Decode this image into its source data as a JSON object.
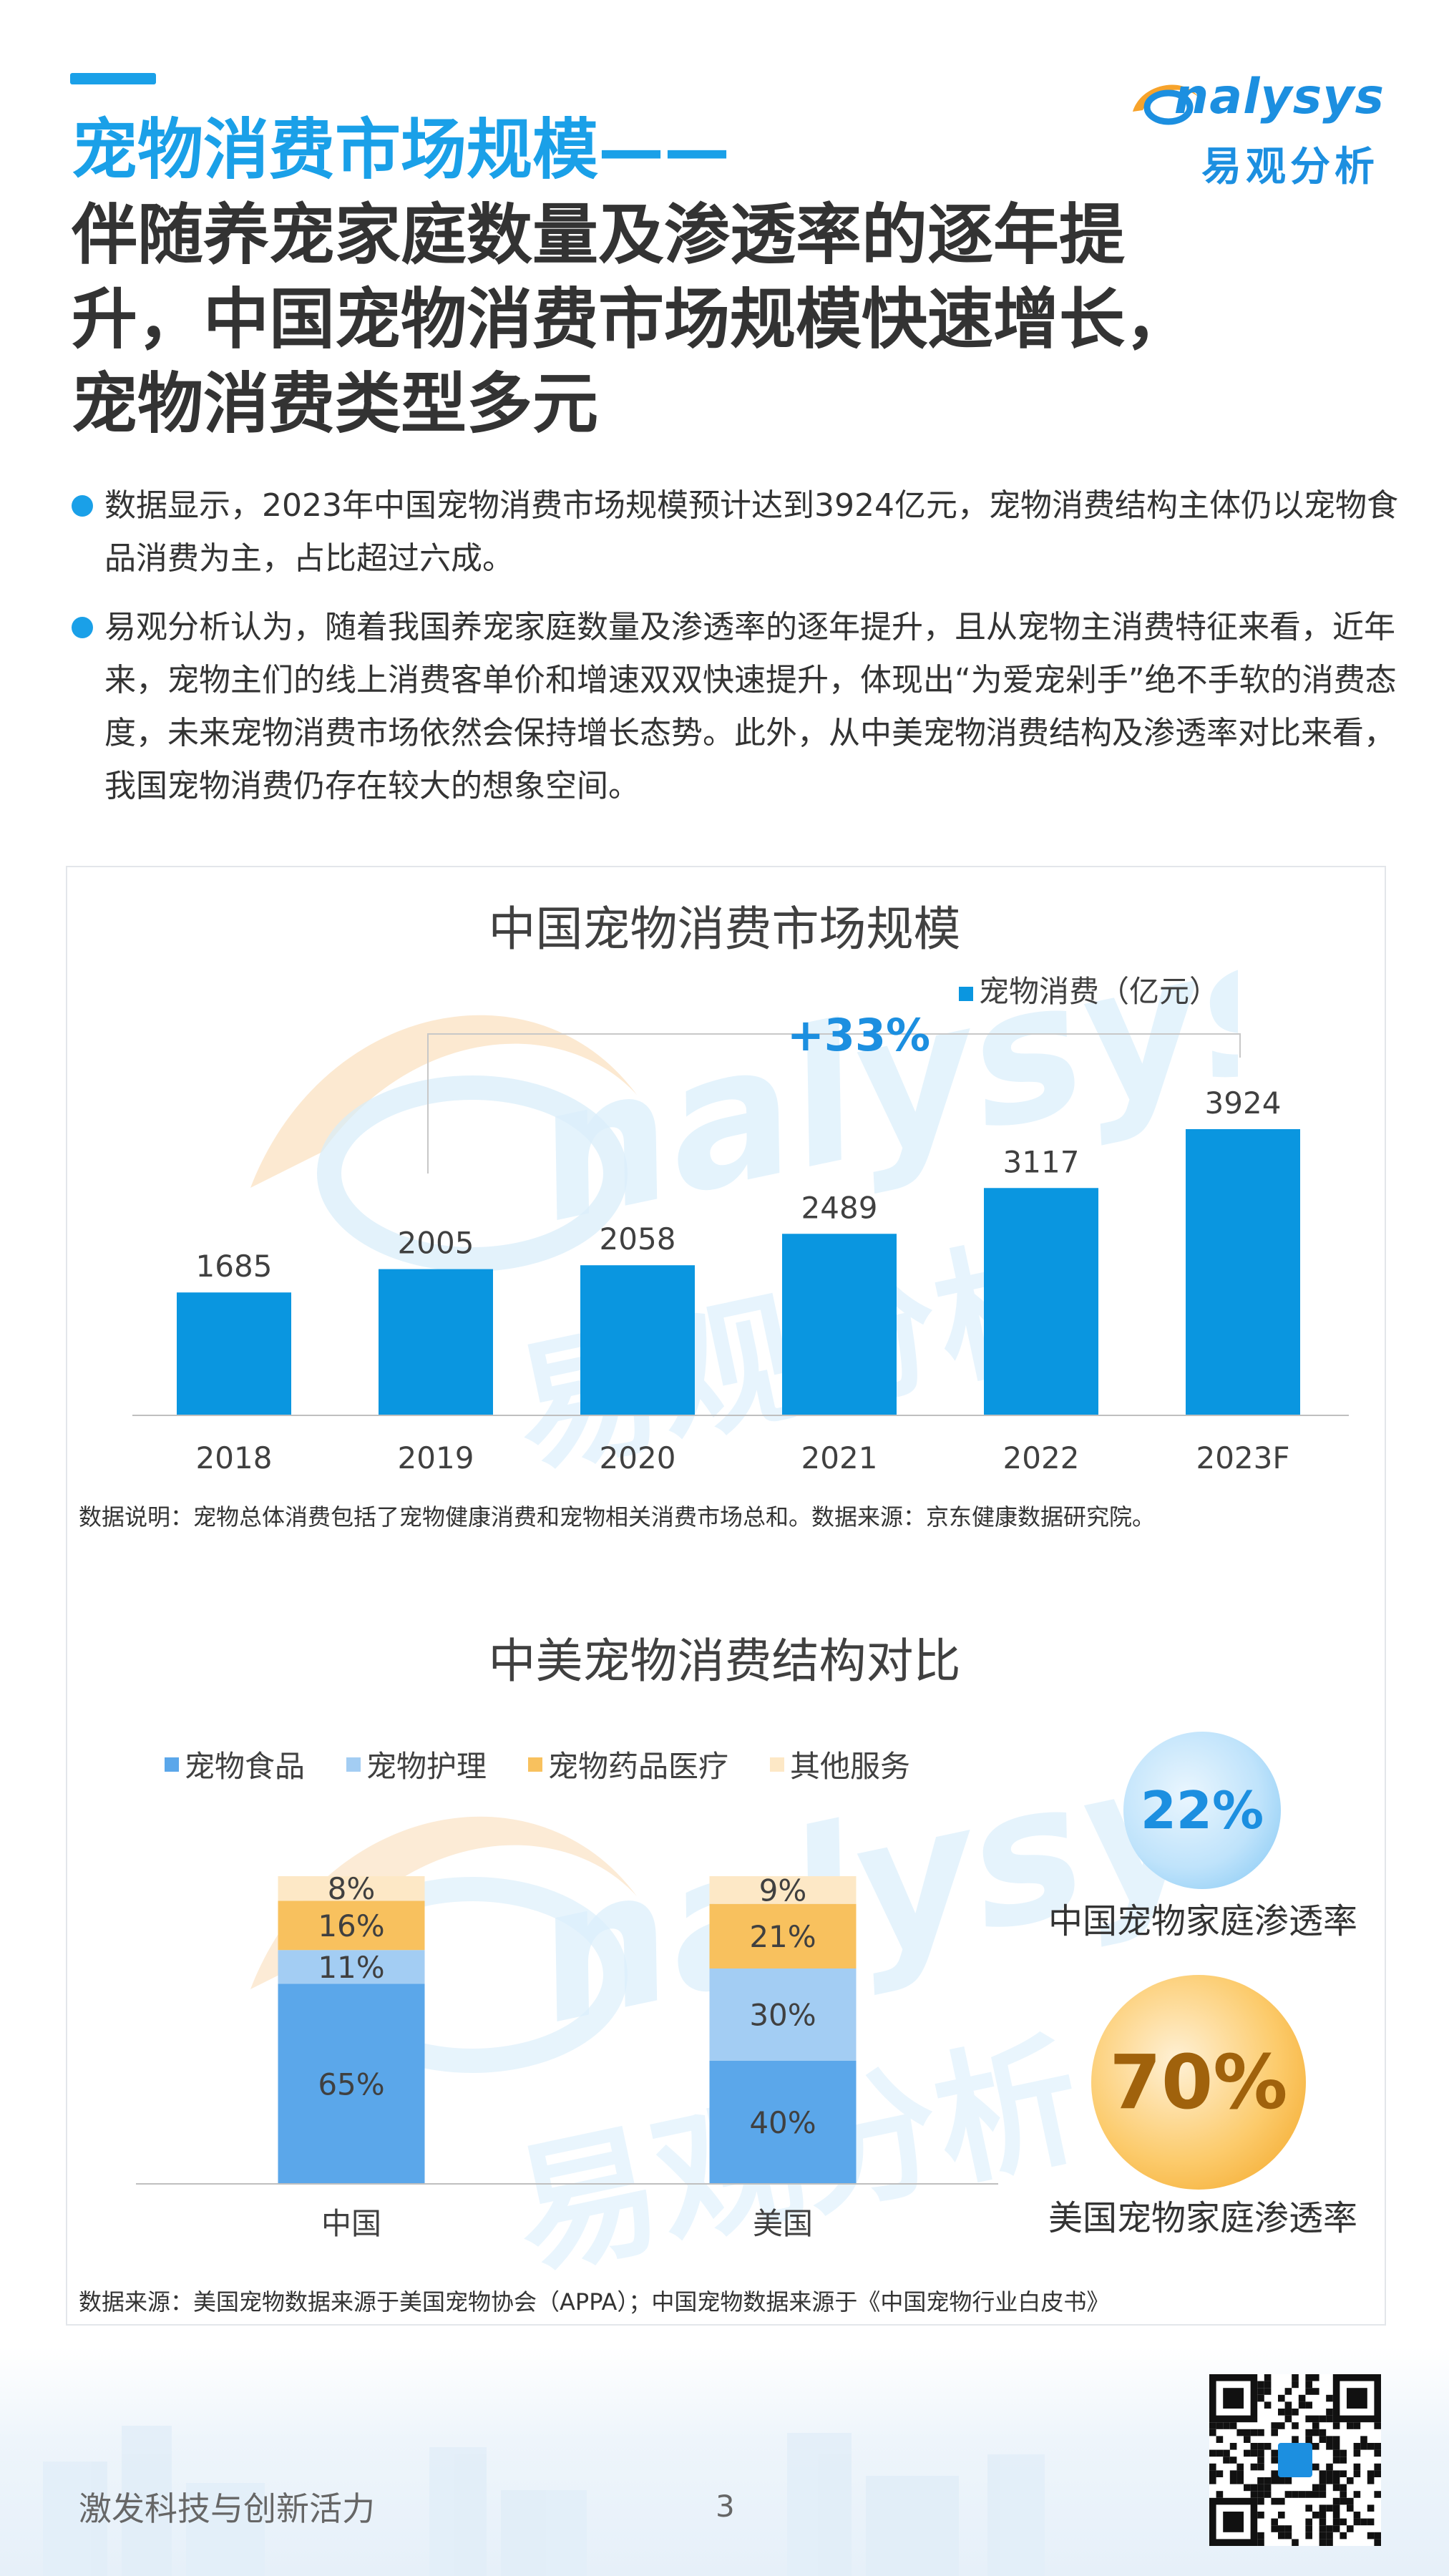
{
  "logo": {
    "brand": "nalysys",
    "brand_cn": "易观分析"
  },
  "heading": {
    "blue_line": "宠物消费市场规模——",
    "dark_text": "伴随养宠家庭数量及渗透率的逐年提升，中国宠物消费市场规模快速增长，宠物消费类型多元"
  },
  "bullets": [
    "数据显示，2023年中国宠物消费市场规模预计达到3924亿元，宠物消费结构主体仍以宠物食品消费为主，占比超过六成。",
    "易观分析认为，随着我国养宠家庭数量及渗透率的逐年提升，且从宠物主消费特征来看，近年来，宠物主们的线上消费客单价和增速双双快速提升，体现出“为爱宠剁手”绝不手软的消费态度，未来宠物消费市场依然会保持增长态势。此外，从中美宠物消费结构及渗透率对比来看，我国宠物消费仍存在较大的想象空间。"
  ],
  "chart_data": [
    {
      "type": "bar",
      "title": "中国宠物消费市场规模",
      "categories": [
        "2018",
        "2019",
        "2020",
        "2021",
        "2022",
        "2023F"
      ],
      "series": [
        {
          "name": "宠物消费（亿元）",
          "values": [
            1685,
            2005,
            2058,
            2489,
            3117,
            3924
          ]
        }
      ],
      "annotation": "+33%",
      "color": "#0a96e0",
      "legend": "top-right",
      "grid": false
    },
    {
      "type": "bar",
      "stacked": true,
      "title": "中美宠物消费结构对比",
      "categories": [
        "中国",
        "美国"
      ],
      "series": [
        {
          "name": "宠物食品",
          "values": [
            65,
            40
          ],
          "color": "#5ba7ea"
        },
        {
          "name": "宠物护理",
          "values": [
            11,
            30
          ],
          "color": "#a3cdf3"
        },
        {
          "name": "宠物药品医疗",
          "values": [
            16,
            21
          ],
          "color": "#f8c15e"
        },
        {
          "name": "其他服务",
          "values": [
            8,
            9
          ],
          "color": "#fde8c6"
        }
      ],
      "data_label_suffix": "%",
      "legend": "top-left"
    }
  ],
  "penetration": [
    {
      "value": "22%",
      "label": "中国宠物家庭渗透率",
      "color": "#1c8fe0"
    },
    {
      "value": "70%",
      "label": "美国宠物家庭渗透率",
      "color": "#a0620c"
    }
  ],
  "notes": {
    "chart1": "数据说明：宠物总体消费包括了宠物健康消费和宠物相关消费市场总和。数据来源：京东健康数据研究院。",
    "chart2": "数据来源：美国宠物数据来源于美国宠物协会（APPA）；中国宠物数据来源于《中国宠物行业白皮书》"
  },
  "footer": {
    "slogan": "激发科技与创新活力",
    "page": "3"
  }
}
